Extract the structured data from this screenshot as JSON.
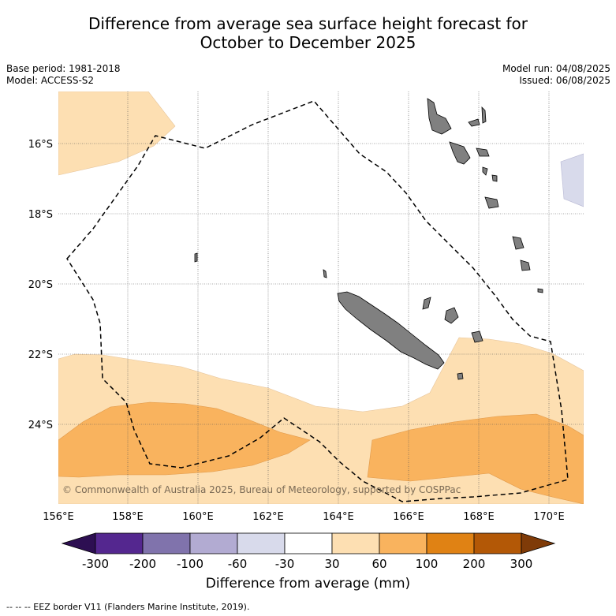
{
  "title": {
    "line1": "Difference from average sea surface height forecast for",
    "line2": "October to December 2025"
  },
  "meta": {
    "base_period": "Base period: 1981-2018",
    "model": "Model: ACCESS-S2",
    "model_run": "Model run: 04/08/2025",
    "issued": "Issued: 06/08/2025"
  },
  "map": {
    "latitude_labels": [
      "16°S",
      "18°S",
      "20°S",
      "22°S",
      "24°S"
    ],
    "longitude_labels": [
      "156°E",
      "158°E",
      "160°E",
      "162°E",
      "164°E",
      "166°E",
      "168°E",
      "170°E"
    ],
    "credit": "© Commonwealth of Australia 2025, Bureau of Meteorology, supported by COSPPac",
    "land_color": "#808080",
    "eez_style": "dashed black"
  },
  "colorbar": {
    "tick_labels": [
      "-300",
      "-200",
      "-100",
      "-60",
      "-30",
      "30",
      "60",
      "100",
      "200",
      "300"
    ],
    "colors": [
      "#2d0f52",
      "#54278f",
      "#8073ac",
      "#b2abd2",
      "#d8daeb",
      "#ffffff",
      "#fddfb2",
      "#f9b35e",
      "#e08214",
      "#b35806",
      "#7f3b08"
    ],
    "label": "Difference from average (mm)"
  },
  "footer": "--  --  -- EEZ border V11 (Flanders Marine Institute, 2019)."
}
